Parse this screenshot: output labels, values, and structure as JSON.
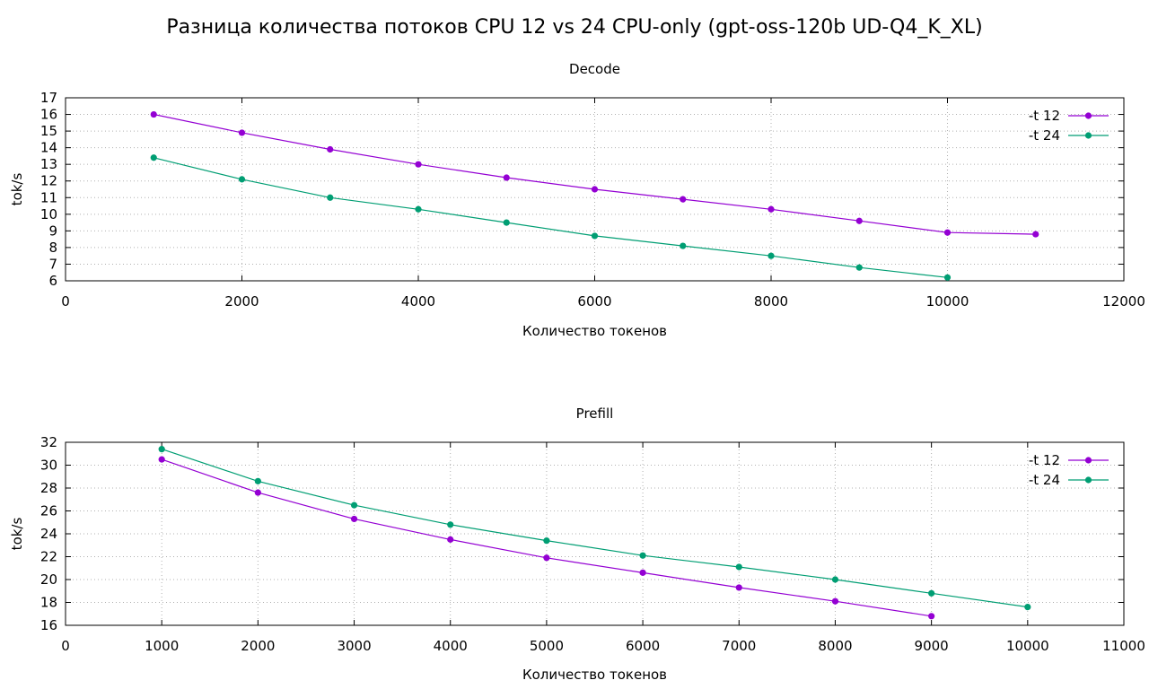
{
  "title": "Разница количества потоков CPU 12 vs 24 CPU-only (gpt-oss-120b UD-Q4_K_XL)",
  "chart_data": [
    {
      "type": "line",
      "title": "Decode",
      "xlabel": "Количество токенов",
      "ylabel": "tok/s",
      "xlim": [
        0,
        12000
      ],
      "ylim": [
        6,
        17
      ],
      "xticks": [
        0,
        2000,
        4000,
        6000,
        8000,
        10000,
        12000
      ],
      "yticks": [
        6,
        7,
        8,
        9,
        10,
        11,
        12,
        13,
        14,
        15,
        16,
        17
      ],
      "grid": true,
      "legend_position": "top-right",
      "series": [
        {
          "name": "-t 12",
          "color": "#9400d3",
          "x": [
            1000,
            2000,
            3000,
            4000,
            5000,
            6000,
            7000,
            8000,
            9000,
            10000,
            11000
          ],
          "y": [
            16.0,
            14.9,
            13.9,
            13.0,
            12.2,
            11.5,
            10.9,
            10.3,
            9.6,
            8.9,
            8.8
          ]
        },
        {
          "name": "-t 24",
          "color": "#009e73",
          "x": [
            1000,
            2000,
            3000,
            4000,
            5000,
            6000,
            7000,
            8000,
            9000,
            10000
          ],
          "y": [
            13.4,
            12.1,
            11.0,
            10.3,
            9.5,
            8.7,
            8.1,
            7.5,
            6.8,
            6.2
          ]
        }
      ]
    },
    {
      "type": "line",
      "title": "Prefill",
      "xlabel": "Количество токенов",
      "ylabel": "tok/s",
      "xlim": [
        0,
        11000
      ],
      "ylim": [
        16,
        32
      ],
      "xticks": [
        0,
        1000,
        2000,
        3000,
        4000,
        5000,
        6000,
        7000,
        8000,
        9000,
        10000,
        11000
      ],
      "yticks": [
        16,
        18,
        20,
        22,
        24,
        26,
        28,
        30,
        32
      ],
      "grid": true,
      "legend_position": "top-right",
      "series": [
        {
          "name": "-t 12",
          "color": "#9400d3",
          "x": [
            1000,
            2000,
            3000,
            4000,
            5000,
            6000,
            7000,
            8000,
            9000
          ],
          "y": [
            30.5,
            27.6,
            25.3,
            23.5,
            21.9,
            20.6,
            19.3,
            18.1,
            16.8
          ]
        },
        {
          "name": "-t 24",
          "color": "#009e73",
          "x": [
            1000,
            2000,
            3000,
            4000,
            5000,
            6000,
            7000,
            8000,
            9000,
            10000
          ],
          "y": [
            31.4,
            28.6,
            26.5,
            24.8,
            23.4,
            22.1,
            21.1,
            20.0,
            18.8,
            17.6
          ]
        }
      ]
    }
  ]
}
